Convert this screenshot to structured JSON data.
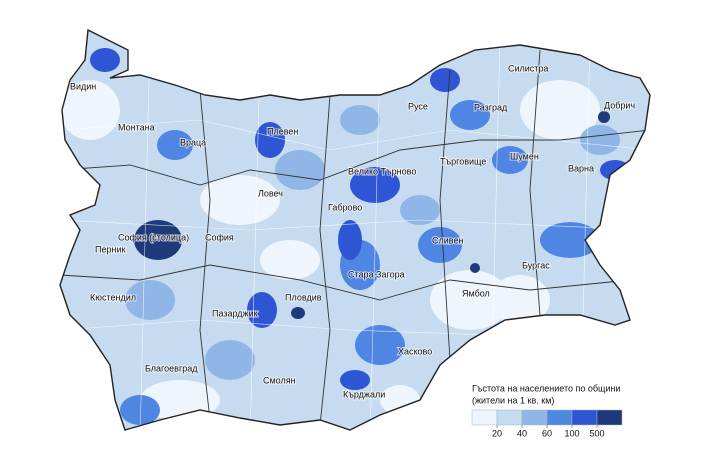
{
  "map": {
    "labels": [
      "Видин",
      "Силистра",
      "Русе",
      "Добрич",
      "Разград",
      "Монтана",
      "Плевен",
      "Враца",
      "Търговище",
      "Шумен",
      "Велико Търново",
      "Варна",
      "Ловеч",
      "Габрово",
      "София (столица)",
      "София",
      "Перник",
      "Сливен",
      "Бургас",
      "Стара Загора",
      "Ямбол",
      "Кюстендил",
      "Пловдив",
      "Пазарджик",
      "Хасково",
      "Благоевград",
      "Смолян",
      "Кърджали"
    ],
    "legend": {
      "title": [
        "Гъстота на населението по общини",
        "(жители  на 1 кв. км)"
      ],
      "colors": [
        "#eef5fc",
        "#c6dbef",
        "#8fb6e6",
        "#4f86e3",
        "#2d55d4",
        "#1f3a7a"
      ],
      "ticks": [
        20,
        40,
        60,
        100,
        500
      ]
    }
  }
}
